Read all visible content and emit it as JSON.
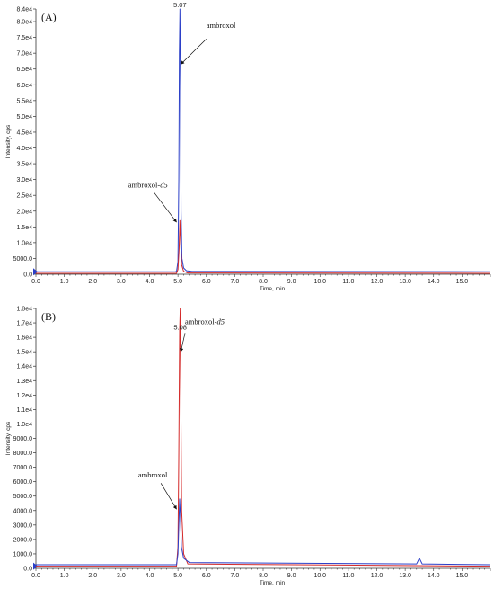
{
  "chart_data": [
    {
      "type": "line",
      "panel_label": "(A)",
      "xlabel": "Time, min",
      "ylabel": "Intensity, cps",
      "xlim": [
        0.0,
        16.0
      ],
      "ylim": [
        0,
        84000
      ],
      "x_ticks": [
        0.0,
        1.0,
        2.0,
        3.0,
        4.0,
        5.0,
        6.0,
        7.0,
        8.0,
        9.0,
        10.0,
        11.0,
        12.0,
        13.0,
        14.0,
        15.0
      ],
      "x_tick_labels": [
        "0.0",
        "1.0",
        "2.0",
        "3.0",
        "4.0",
        "5.0",
        "6.0",
        "7.0",
        "8.0",
        "9.0",
        "10.0",
        "11.0",
        "12.0",
        "13.0",
        "14.0",
        "15.0"
      ],
      "y_ticks": [
        0,
        5000,
        10000,
        15000,
        20000,
        25000,
        30000,
        35000,
        40000,
        45000,
        50000,
        55000,
        60000,
        65000,
        70000,
        75000,
        80000,
        84000
      ],
      "y_tick_labels": [
        "0.0",
        "5000.0",
        "1.0e4",
        "1.5e4",
        "2.0e4",
        "2.5e4",
        "3.0e4",
        "3.5e4",
        "4.0e4",
        "4.5e4",
        "5.0e4",
        "5.5e4",
        "6.0e4",
        "6.5e4",
        "7.0e4",
        "7.5e4",
        "8.0e4",
        "8.4e4"
      ],
      "peak_label": "5.07",
      "peak_label_at": [
        5.07,
        84000
      ],
      "grid": false,
      "series": [
        {
          "color": "#2b3fc8",
          "points": [
            [
              0.0,
              800
            ],
            [
              4.9,
              800
            ],
            [
              4.95,
              900
            ],
            [
              5.0,
              4000
            ],
            [
              5.03,
              30000
            ],
            [
              5.05,
              70000
            ],
            [
              5.07,
              84000
            ],
            [
              5.09,
              60000
            ],
            [
              5.11,
              20000
            ],
            [
              5.14,
              5000
            ],
            [
              5.2,
              2000
            ],
            [
              5.3,
              1100
            ],
            [
              5.5,
              900
            ],
            [
              16.0,
              800
            ]
          ]
        },
        {
          "color": "#d42a2a",
          "points": [
            [
              0.0,
              300
            ],
            [
              4.95,
              300
            ],
            [
              5.0,
              1500
            ],
            [
              5.04,
              8000
            ],
            [
              5.07,
              17000
            ],
            [
              5.1,
              9000
            ],
            [
              5.13,
              3000
            ],
            [
              5.2,
              900
            ],
            [
              5.35,
              400
            ],
            [
              16.0,
              300
            ]
          ]
        }
      ],
      "annotations": [
        {
          "text": "ambroxol",
          "suffix": "",
          "text_at": [
            6.0,
            78000
          ],
          "arrow_from": [
            6.0,
            74500
          ],
          "arrow_to": [
            5.1,
            66500
          ]
        },
        {
          "text": "ambroxol-",
          "suffix": "d5",
          "text_at": [
            3.25,
            27500
          ],
          "arrow_from": [
            4.15,
            26000
          ],
          "arrow_to": [
            4.95,
            16500
          ]
        }
      ]
    },
    {
      "type": "line",
      "panel_label": "(B)",
      "xlabel": "Time, min",
      "ylabel": "Intensity, cps",
      "xlim": [
        0.0,
        16.0
      ],
      "ylim": [
        0,
        18000
      ],
      "x_ticks": [
        0.0,
        1.0,
        2.0,
        3.0,
        4.0,
        5.0,
        6.0,
        7.0,
        8.0,
        9.0,
        10.0,
        11.0,
        12.0,
        13.0,
        14.0,
        15.0
      ],
      "x_tick_labels": [
        "0.0",
        "1.0",
        "2.0",
        "3.0",
        "4.0",
        "5.0",
        "6.0",
        "7.0",
        "8.0",
        "9.0",
        "10.0",
        "11.0",
        "12.0",
        "13.0",
        "14.0",
        "15.0"
      ],
      "y_ticks": [
        0,
        1000,
        2000,
        3000,
        4000,
        5000,
        6000,
        7000,
        8000,
        9000,
        10000,
        11000,
        12000,
        13000,
        14000,
        15000,
        16000,
        17000,
        18000
      ],
      "y_tick_labels": [
        "0.0",
        "1000.0",
        "2000.0",
        "3000.0",
        "4000.0",
        "5000.0",
        "6000.0",
        "7000.0",
        "8000.0",
        "9000.0",
        "1.0e4",
        "1.1e4",
        "1.2e4",
        "1.3e4",
        "1.4e4",
        "1.5e4",
        "1.6e4",
        "1.7e4",
        "1.8e4"
      ],
      "peak_label": "5.08",
      "peak_label_at": [
        5.08,
        16400
      ],
      "grid": false,
      "series": [
        {
          "color": "#d42a2a",
          "points": [
            [
              0.0,
              150
            ],
            [
              4.95,
              150
            ],
            [
              5.0,
              1500
            ],
            [
              5.03,
              8000
            ],
            [
              5.06,
              16500
            ],
            [
              5.08,
              18000
            ],
            [
              5.1,
              12000
            ],
            [
              5.13,
              4000
            ],
            [
              5.2,
              1000
            ],
            [
              5.35,
              300
            ],
            [
              16.0,
              150
            ]
          ]
        },
        {
          "color": "#2b3fc8",
          "points": [
            [
              0.0,
              250
            ],
            [
              4.95,
              250
            ],
            [
              5.0,
              1000
            ],
            [
              5.03,
              3000
            ],
            [
              5.06,
              4800
            ],
            [
              5.09,
              3500
            ],
            [
              5.12,
              1500
            ],
            [
              5.2,
              700
            ],
            [
              5.4,
              400
            ],
            [
              13.4,
              300
            ],
            [
              13.5,
              700
            ],
            [
              13.6,
              300
            ],
            [
              16.0,
              250
            ]
          ]
        }
      ],
      "annotations": [
        {
          "text": "ambroxol-",
          "suffix": "d5",
          "text_at": [
            5.25,
            16900
          ],
          "arrow_from": [
            5.25,
            16300
          ],
          "arrow_to": [
            5.1,
            15000
          ]
        },
        {
          "text": "ambroxol",
          "suffix": "",
          "text_at": [
            3.6,
            6300
          ],
          "arrow_from": [
            4.4,
            5900
          ],
          "arrow_to": [
            4.95,
            4100
          ]
        }
      ]
    }
  ]
}
